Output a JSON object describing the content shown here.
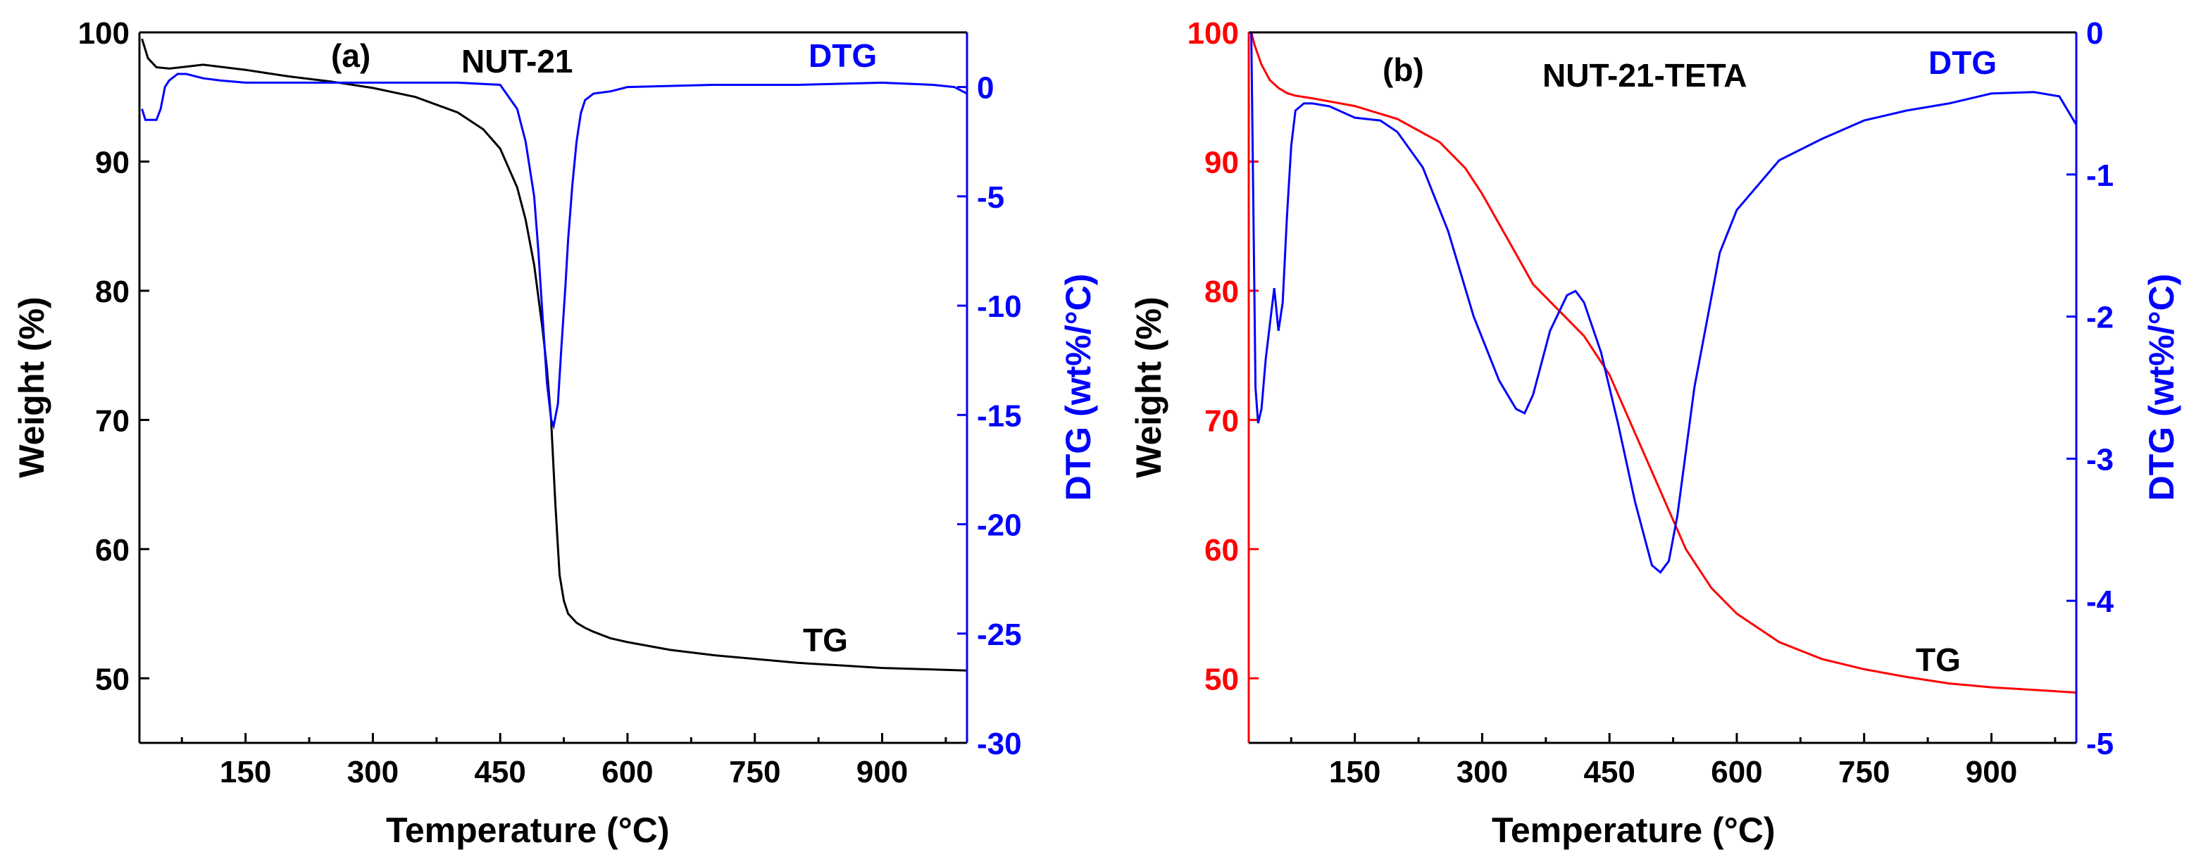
{
  "chart_data": [
    {
      "type": "line",
      "panel_label": "(a)",
      "title": "NUT-21",
      "xlabel_text": "Temperature (",
      "xlabel_unit": "°C",
      "xlabel_close": ")",
      "ylabel_left": "Weight (%)",
      "ylabel_right": "DTG (wt%/°C)",
      "xlim": [
        25,
        1000
      ],
      "ylim_left": [
        45,
        100
      ],
      "ylim_right": [
        -30,
        2.5
      ],
      "xticks": [
        150,
        300,
        450,
        600,
        750,
        900
      ],
      "yticks_left": [
        50,
        60,
        70,
        80,
        90,
        100
      ],
      "yticks_right": [
        0,
        -5,
        -10,
        -15,
        -20,
        -25,
        -30
      ],
      "colors": {
        "axis": "#000000",
        "tg": "#000000",
        "dtg": "#0000ff",
        "left_axis": "#000000",
        "right_axis": "#0000ff"
      },
      "series": [
        {
          "name": "TG",
          "label": "TG",
          "axis": "left",
          "x": [
            28,
            35,
            45,
            60,
            100,
            150,
            200,
            250,
            300,
            350,
            400,
            430,
            450,
            470,
            480,
            490,
            500,
            505,
            510,
            515,
            520,
            525,
            530,
            540,
            550,
            560,
            580,
            600,
            650,
            700,
            750,
            800,
            850,
            900,
            950,
            1000
          ],
          "y": [
            99.5,
            98.0,
            97.3,
            97.2,
            97.5,
            97.1,
            96.6,
            96.2,
            95.7,
            95.0,
            93.8,
            92.5,
            91.0,
            88.0,
            85.5,
            82.0,
            77.0,
            74.0,
            70.0,
            63.5,
            58.0,
            56.0,
            55.0,
            54.3,
            53.9,
            53.6,
            53.1,
            52.8,
            52.2,
            51.8,
            51.5,
            51.2,
            51.0,
            50.8,
            50.7,
            50.6
          ]
        },
        {
          "name": "DTG",
          "label": "DTG",
          "axis": "right",
          "x": [
            28,
            32,
            38,
            45,
            50,
            55,
            60,
            70,
            80,
            90,
            100,
            120,
            150,
            200,
            300,
            400,
            450,
            470,
            480,
            490,
            495,
            500,
            505,
            510,
            513,
            518,
            522,
            527,
            530,
            535,
            540,
            545,
            550,
            560,
            580,
            600,
            700,
            800,
            900,
            960,
            985,
            1000
          ],
          "y": [
            -1.0,
            -1.5,
            -1.5,
            -1.5,
            -1.0,
            0.0,
            0.3,
            0.6,
            0.6,
            0.5,
            0.4,
            0.3,
            0.2,
            0.2,
            0.2,
            0.2,
            0.1,
            -1.0,
            -2.5,
            -5.0,
            -7.5,
            -10.5,
            -13.5,
            -15.2,
            -15.5,
            -14.5,
            -12.0,
            -9.0,
            -7.0,
            -4.5,
            -2.5,
            -1.2,
            -0.6,
            -0.3,
            -0.2,
            0.0,
            0.1,
            0.1,
            0.2,
            0.1,
            0.0,
            -0.3
          ]
        }
      ]
    },
    {
      "type": "line",
      "panel_label": "(b)",
      "title": "NUT-21-TETA",
      "xlabel_text": "Temperature (",
      "xlabel_unit": "°C",
      "xlabel_close": ")",
      "ylabel_left": "Weight (%)",
      "ylabel_right": "DTG (wt%/°C)",
      "xlim": [
        25,
        1000
      ],
      "ylim_left": [
        45,
        100
      ],
      "ylim_right": [
        -5,
        0
      ],
      "xticks": [
        150,
        300,
        450,
        600,
        750,
        900
      ],
      "yticks_left": [
        50,
        60,
        70,
        80,
        90,
        100
      ],
      "yticks_right": [
        0,
        -1,
        -2,
        -3,
        -4,
        -5
      ],
      "colors": {
        "axis": "#000000",
        "tg": "#ff0000",
        "dtg": "#0000ff",
        "left_axis": "#ff0000",
        "right_axis": "#0000ff"
      },
      "series": [
        {
          "name": "TG",
          "label": "TG",
          "axis": "left",
          "x": [
            28,
            32,
            40,
            50,
            60,
            70,
            80,
            100,
            150,
            200,
            250,
            280,
            300,
            330,
            360,
            390,
            420,
            450,
            480,
            510,
            540,
            570,
            600,
            650,
            700,
            750,
            800,
            850,
            900,
            950,
            1000
          ],
          "y": [
            100.0,
            99.0,
            97.5,
            96.3,
            95.7,
            95.3,
            95.1,
            94.9,
            94.3,
            93.3,
            91.5,
            89.5,
            87.5,
            84.0,
            80.5,
            78.5,
            76.5,
            73.5,
            69.0,
            64.5,
            60.0,
            57.0,
            55.0,
            52.8,
            51.5,
            50.7,
            50.1,
            49.6,
            49.3,
            49.1,
            48.9
          ]
        },
        {
          "name": "DTG",
          "label": "DTG",
          "axis": "right",
          "x": [
            28,
            30,
            33,
            36,
            40,
            45,
            50,
            55,
            60,
            65,
            70,
            75,
            80,
            90,
            100,
            120,
            150,
            180,
            200,
            230,
            260,
            290,
            320,
            340,
            350,
            360,
            380,
            400,
            410,
            420,
            440,
            460,
            480,
            500,
            510,
            520,
            530,
            550,
            580,
            600,
            650,
            700,
            750,
            800,
            850,
            900,
            950,
            980,
            1000
          ],
          "y": [
            0.0,
            -1.0,
            -2.5,
            -2.75,
            -2.65,
            -2.3,
            -2.05,
            -1.8,
            -2.1,
            -1.9,
            -1.3,
            -0.8,
            -0.55,
            -0.5,
            -0.5,
            -0.52,
            -0.6,
            -0.62,
            -0.7,
            -0.95,
            -1.4,
            -2.0,
            -2.45,
            -2.65,
            -2.68,
            -2.55,
            -2.1,
            -1.85,
            -1.82,
            -1.9,
            -2.25,
            -2.75,
            -3.3,
            -3.75,
            -3.8,
            -3.72,
            -3.4,
            -2.5,
            -1.55,
            -1.25,
            -0.9,
            -0.75,
            -0.62,
            -0.55,
            -0.5,
            -0.43,
            -0.42,
            -0.45,
            -0.65
          ]
        }
      ]
    }
  ]
}
